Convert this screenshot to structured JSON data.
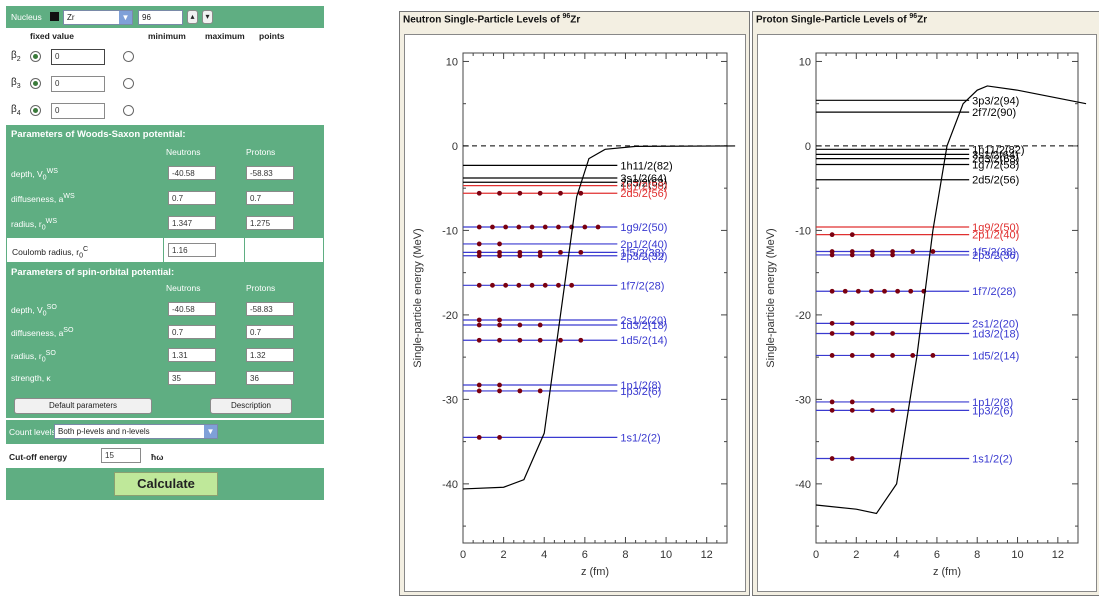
{
  "form": {
    "nucleus_label": "Nucleus",
    "element": "Zr",
    "mass": "96",
    "col_fixed": "fixed value",
    "col_min": "minimum",
    "col_max": "maximum",
    "col_points": "points",
    "betas": [
      {
        "label": "β",
        "sub": "2",
        "value": "0"
      },
      {
        "label": "β",
        "sub": "3",
        "value": "0"
      },
      {
        "label": "β",
        "sub": "4",
        "value": "0"
      }
    ],
    "ws_title": "Parameters of Woods-Saxon potential:",
    "neutrons": "Neutrons",
    "protons": "Protons",
    "ws_rows": [
      {
        "label": "depth, V",
        "sub": "0",
        "sup": "WS",
        "n": "-40.58",
        "p": "-58.83"
      },
      {
        "label": "diffuseness, a",
        "sub": "",
        "sup": "WS",
        "n": "0.7",
        "p": "0.7"
      },
      {
        "label": "radius, r",
        "sub": "0",
        "sup": "WS",
        "n": "1.347",
        "p": "1.275"
      }
    ],
    "coulomb_label": "Coulomb radius, r",
    "coulomb_sub": "0",
    "coulomb_sup": "C",
    "coulomb_value": "1.16",
    "so_title": "Parameters of spin-orbital potential:",
    "so_rows": [
      {
        "label": "depth, V",
        "sub": "0",
        "sup": "SO",
        "n": "-40.58",
        "p": "-58.83"
      },
      {
        "label": "diffuseness, a",
        "sub": "",
        "sup": "SO",
        "n": "0.7",
        "p": "0.7"
      },
      {
        "label": "radius, r",
        "sub": "0",
        "sup": "SO",
        "n": "1.31",
        "p": "1.32"
      },
      {
        "label": "strength, κ",
        "sub": "",
        "sup": "",
        "n": "35",
        "p": "36"
      }
    ],
    "default_btn": "Default parameters",
    "description_btn": "Description",
    "count_levels_label": "Count levels",
    "count_levels_value": "Both p-levels and n-levels",
    "cutoff_label": "Cut-off energy",
    "cutoff_value": "15",
    "cutoff_unit": "ħω",
    "calculate": "Calculate"
  },
  "chart_data": [
    {
      "type": "line",
      "title_prefix": "Neutron Single-Particle Levels of ",
      "title_sup": "96",
      "title_el": "Zr",
      "xlabel": "z (fm)",
      "ylabel": "Single-particle energy (MeV)",
      "xlim": [
        0,
        13
      ],
      "ylim": [
        -47,
        11
      ],
      "xticks": [
        0,
        2,
        4,
        6,
        8,
        10,
        12
      ],
      "yticks": [
        10,
        0,
        -10,
        -20,
        -30,
        -40
      ],
      "potential": [
        [
          0,
          -40.6
        ],
        [
          2,
          -40.4
        ],
        [
          3,
          -39.5
        ],
        [
          4,
          -34
        ],
        [
          4.8,
          -20
        ],
        [
          5.6,
          -6
        ],
        [
          6.2,
          -1.5
        ],
        [
          7,
          -0.4
        ],
        [
          8.5,
          -0.05
        ],
        [
          13.5,
          0
        ]
      ],
      "levels": [
        {
          "label": "1h11/2(82)",
          "e": -2.3,
          "color": "#000000",
          "occ": 0
        },
        {
          "label": "3s1/2(64)",
          "e": -3.8,
          "color": "#000000",
          "occ": 0
        },
        {
          "label": "2d3/2(68)",
          "e": -4.3,
          "color": "#000000",
          "occ": 0
        },
        {
          "label": "1g7/2(58)",
          "e": -4.7,
          "color": "#e03030",
          "occ": 0
        },
        {
          "label": "2d5/2(56)",
          "e": -5.6,
          "color": "#e03030",
          "occ": 6
        },
        {
          "label": "1g9/2(50)",
          "e": -9.6,
          "color": "#3a3ad0",
          "occ": 10
        },
        {
          "label": "2p1/2(40)",
          "e": -11.6,
          "color": "#3a3ad0",
          "occ": 2
        },
        {
          "label": "1f5/2(38)",
          "e": -12.6,
          "color": "#3a3ad0",
          "occ": 6
        },
        {
          "label": "2p3/2(32)",
          "e": -13.0,
          "color": "#3a3ad0",
          "occ": 4
        },
        {
          "label": "1f7/2(28)",
          "e": -16.5,
          "color": "#3a3ad0",
          "occ": 8
        },
        {
          "label": "2s1/2(20)",
          "e": -20.6,
          "color": "#3a3ad0",
          "occ": 2
        },
        {
          "label": "1d3/2(18)",
          "e": -21.2,
          "color": "#3a3ad0",
          "occ": 4
        },
        {
          "label": "1d5/2(14)",
          "e": -23.0,
          "color": "#3a3ad0",
          "occ": 6
        },
        {
          "label": "1p1/2(8)",
          "e": -28.3,
          "color": "#3a3ad0",
          "occ": 2
        },
        {
          "label": "1p3/2(6)",
          "e": -29.0,
          "color": "#3a3ad0",
          "occ": 4
        },
        {
          "label": "1s1/2(2)",
          "e": -34.5,
          "color": "#3a3ad0",
          "occ": 2
        }
      ]
    },
    {
      "type": "line",
      "title_prefix": "Proton Single-Particle Levels of ",
      "title_sup": "96",
      "title_el": "Zr",
      "xlabel": "z (fm)",
      "ylabel": "Single-particle energy (MeV)",
      "xlim": [
        0,
        13
      ],
      "ylim": [
        -47,
        11
      ],
      "xticks": [
        0,
        2,
        4,
        6,
        8,
        10,
        12
      ],
      "yticks": [
        10,
        0,
        -10,
        -20,
        -30,
        -40
      ],
      "potential": [
        [
          0,
          -42.5
        ],
        [
          2,
          -43
        ],
        [
          3,
          -43.5
        ],
        [
          4,
          -40
        ],
        [
          5,
          -25
        ],
        [
          5.8,
          -10
        ],
        [
          6.5,
          0
        ],
        [
          7.3,
          5
        ],
        [
          8,
          6.6
        ],
        [
          8.5,
          7.1
        ],
        [
          10,
          6.6
        ],
        [
          13.5,
          5
        ]
      ],
      "levels": [
        {
          "label": "3p3/2(94)",
          "e": 5.4,
          "color": "#000000",
          "occ": 0
        },
        {
          "label": "2f7/2(90)",
          "e": 4.0,
          "color": "#000000",
          "occ": 0
        },
        {
          "label": "1h11/2(82)",
          "e": -0.4,
          "color": "#000000",
          "occ": 0
        },
        {
          "label": "3s1/2(64)",
          "e": -1.0,
          "color": "#000000",
          "occ": 0
        },
        {
          "label": "2d3/2(68)",
          "e": -1.5,
          "color": "#000000",
          "occ": 0
        },
        {
          "label": "1g7/2(58)",
          "e": -2.2,
          "color": "#000000",
          "occ": 0
        },
        {
          "label": "2d5/2(56)",
          "e": -4.0,
          "color": "#000000",
          "occ": 0
        },
        {
          "label": "1g9/2(50)",
          "e": -9.6,
          "color": "#e03030",
          "occ": 0
        },
        {
          "label": "2p1/2(40)",
          "e": -10.5,
          "color": "#e03030",
          "occ": 2
        },
        {
          "label": "1f5/2(38)",
          "e": -12.5,
          "color": "#3a3ad0",
          "occ": 6
        },
        {
          "label": "2p3/2(36)",
          "e": -12.9,
          "color": "#3a3ad0",
          "occ": 4
        },
        {
          "label": "1f7/2(28)",
          "e": -17.2,
          "color": "#3a3ad0",
          "occ": 8
        },
        {
          "label": "2s1/2(20)",
          "e": -21.0,
          "color": "#3a3ad0",
          "occ": 2
        },
        {
          "label": "1d3/2(18)",
          "e": -22.2,
          "color": "#3a3ad0",
          "occ": 4
        },
        {
          "label": "1d5/2(14)",
          "e": -24.8,
          "color": "#3a3ad0",
          "occ": 6
        },
        {
          "label": "1p1/2(8)",
          "e": -30.3,
          "color": "#3a3ad0",
          "occ": 2
        },
        {
          "label": "1p3/2(6)",
          "e": -31.3,
          "color": "#3a3ad0",
          "occ": 4
        },
        {
          "label": "1s1/2(2)",
          "e": -37.0,
          "color": "#3a3ad0",
          "occ": 2
        }
      ]
    }
  ]
}
